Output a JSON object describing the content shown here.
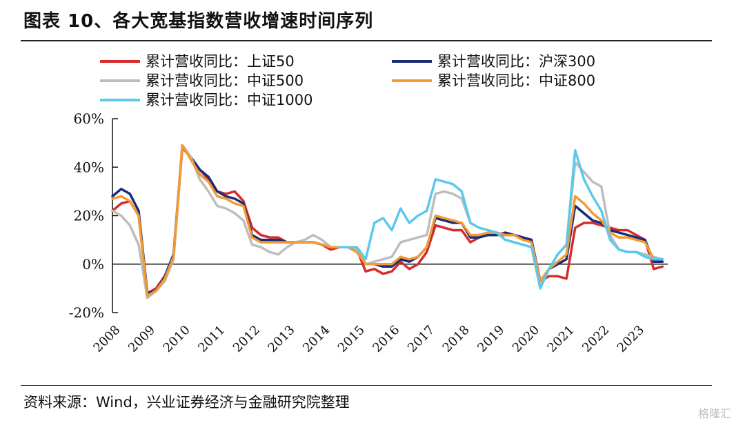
{
  "title": "图表 10、各大宽基指数营收增速时间序列",
  "source": "资料来源：Wind，兴业证券经济与金融研究院整理",
  "watermark": "格隆汇",
  "chart_data": {
    "type": "line",
    "ylim": [
      -20,
      60
    ],
    "yticks": [
      "60%",
      "40%",
      "20%",
      "0%",
      "-20%"
    ],
    "ytick_values": [
      60,
      40,
      20,
      0,
      -20
    ],
    "xlim": [
      2008.0,
      2023.9
    ],
    "xtick_labels": [
      "2008",
      "2009",
      "2010",
      "2011",
      "2012",
      "2013",
      "2014",
      "2015",
      "2016",
      "2017",
      "2018",
      "2019",
      "2020",
      "2021",
      "2022",
      "2023"
    ],
    "xtick_values": [
      2008,
      2009,
      2010,
      2011,
      2012,
      2013,
      2014,
      2015,
      2016,
      2017,
      2018,
      2019,
      2020,
      2021,
      2022,
      2023
    ],
    "legend_position": "top",
    "series": [
      {
        "name": "累计营收同比：上证50",
        "color": "#d62b2b",
        "x": [
          2008.0,
          2008.25,
          2008.5,
          2008.75,
          2009.0,
          2009.25,
          2009.5,
          2009.75,
          2010.0,
          2010.25,
          2010.5,
          2010.75,
          2011.0,
          2011.25,
          2011.5,
          2011.75,
          2012.0,
          2012.25,
          2012.5,
          2012.75,
          2013.0,
          2013.25,
          2013.5,
          2013.75,
          2014.0,
          2014.25,
          2014.5,
          2014.75,
          2015.0,
          2015.25,
          2015.5,
          2015.75,
          2016.0,
          2016.25,
          2016.5,
          2016.75,
          2017.0,
          2017.25,
          2017.5,
          2017.75,
          2018.0,
          2018.25,
          2018.5,
          2018.75,
          2019.0,
          2019.25,
          2019.5,
          2019.75,
          2020.0,
          2020.25,
          2020.5,
          2020.75,
          2021.0,
          2021.25,
          2021.5,
          2021.75,
          2022.0,
          2022.25,
          2022.5,
          2022.75,
          2023.0,
          2023.25,
          2023.5,
          2023.75
        ],
        "values": [
          22,
          25,
          26,
          20,
          -12,
          -10,
          -5,
          3,
          48,
          44,
          39,
          35,
          30,
          29,
          30,
          26,
          15,
          12,
          11,
          11,
          9,
          9,
          9,
          9,
          8,
          6,
          7,
          7,
          6,
          -3,
          -2,
          -4,
          -3,
          1,
          -2,
          0,
          5,
          16,
          15,
          14,
          14,
          9,
          11,
          12,
          12,
          12,
          12,
          11,
          10,
          -7,
          -5,
          -5,
          -6,
          15,
          17,
          17,
          16,
          15,
          14,
          14,
          12,
          10,
          -2,
          -1
        ]
      },
      {
        "name": "累计营收同比：沪深300",
        "color": "#1a2c7a",
        "x": [
          2008.0,
          2008.25,
          2008.5,
          2008.75,
          2009.0,
          2009.25,
          2009.5,
          2009.75,
          2010.0,
          2010.25,
          2010.5,
          2010.75,
          2011.0,
          2011.25,
          2011.5,
          2011.75,
          2012.0,
          2012.25,
          2012.5,
          2012.75,
          2013.0,
          2013.25,
          2013.5,
          2013.75,
          2014.0,
          2014.25,
          2014.5,
          2014.75,
          2015.0,
          2015.25,
          2015.5,
          2015.75,
          2016.0,
          2016.25,
          2016.5,
          2016.75,
          2017.0,
          2017.25,
          2017.5,
          2017.75,
          2018.0,
          2018.25,
          2018.5,
          2018.75,
          2019.0,
          2019.25,
          2019.5,
          2019.75,
          2020.0,
          2020.25,
          2020.5,
          2020.75,
          2021.0,
          2021.25,
          2021.5,
          2021.75,
          2022.0,
          2022.25,
          2022.5,
          2022.75,
          2023.0,
          2023.25,
          2023.5,
          2023.75
        ],
        "values": [
          28,
          31,
          29,
          22,
          -12,
          -11,
          -5,
          4,
          49,
          44,
          39,
          36,
          30,
          28,
          27,
          25,
          12,
          10,
          10,
          10,
          9,
          9,
          9,
          9,
          8,
          7,
          7,
          7,
          5,
          0,
          0,
          -1,
          -1,
          2,
          1,
          3,
          7,
          19,
          18,
          17,
          17,
          11,
          11,
          12,
          12,
          13,
          12,
          11,
          10,
          -7,
          -2,
          0,
          2,
          24,
          21,
          18,
          17,
          14,
          13,
          12,
          11,
          10,
          1,
          1
        ]
      },
      {
        "name": "累计营收同比：中证500",
        "color": "#bdbdbd",
        "x": [
          2008.0,
          2008.25,
          2008.5,
          2008.75,
          2009.0,
          2009.25,
          2009.5,
          2009.75,
          2010.0,
          2010.25,
          2010.5,
          2010.75,
          2011.0,
          2011.25,
          2011.5,
          2011.75,
          2012.0,
          2012.25,
          2012.5,
          2012.75,
          2013.0,
          2013.25,
          2013.5,
          2013.75,
          2014.0,
          2014.25,
          2014.5,
          2014.75,
          2015.0,
          2015.25,
          2015.5,
          2015.75,
          2016.0,
          2016.25,
          2016.5,
          2016.75,
          2017.0,
          2017.25,
          2017.5,
          2017.75,
          2018.0,
          2018.25,
          2018.5,
          2018.75,
          2019.0,
          2019.25,
          2019.5,
          2019.75,
          2020.0,
          2020.25,
          2020.5,
          2020.75,
          2021.0,
          2021.25,
          2021.5,
          2021.75,
          2022.0,
          2022.25,
          2022.5,
          2022.75,
          2023.0,
          2023.25,
          2023.5,
          2023.75
        ],
        "values": [
          22,
          20,
          16,
          8,
          -14,
          -11,
          -7,
          2,
          49,
          44,
          35,
          30,
          24,
          23,
          21,
          18,
          8,
          7,
          5,
          4,
          7,
          9,
          10,
          12,
          10,
          7,
          7,
          7,
          6,
          0,
          1,
          2,
          3,
          9,
          10,
          11,
          12,
          29,
          30,
          29,
          27,
          17,
          15,
          14,
          13,
          10,
          9,
          8,
          7,
          -8,
          -2,
          4,
          8,
          42,
          38,
          34,
          32,
          12,
          6,
          5,
          5,
          4,
          3,
          2
        ]
      },
      {
        "name": "累计营收同比：中证800",
        "color": "#f39a32",
        "x": [
          2008.0,
          2008.25,
          2008.5,
          2008.75,
          2009.0,
          2009.25,
          2009.5,
          2009.75,
          2010.0,
          2010.25,
          2010.5,
          2010.75,
          2011.0,
          2011.25,
          2011.5,
          2011.75,
          2012.0,
          2012.25,
          2012.5,
          2012.75,
          2013.0,
          2013.25,
          2013.5,
          2013.75,
          2014.0,
          2014.25,
          2014.5,
          2014.75,
          2015.0,
          2015.25,
          2015.5,
          2015.75,
          2016.0,
          2016.25,
          2016.5,
          2016.75,
          2017.0,
          2017.25,
          2017.5,
          2017.75,
          2018.0,
          2018.25,
          2018.5,
          2018.75,
          2019.0,
          2019.25,
          2019.5,
          2019.75,
          2020.0,
          2020.25,
          2020.5,
          2020.75,
          2021.0,
          2021.25,
          2021.5,
          2021.75,
          2022.0,
          2022.25,
          2022.5,
          2022.75,
          2023.0,
          2023.25,
          2023.5,
          2023.75
        ],
        "values": [
          27,
          28,
          26,
          20,
          -13,
          -11,
          -6,
          3,
          49,
          43,
          37,
          34,
          28,
          27,
          25,
          24,
          11,
          9,
          9,
          9,
          9,
          9,
          9,
          9,
          8,
          7,
          7,
          7,
          5,
          0,
          0,
          0,
          0,
          3,
          2,
          3,
          7,
          20,
          19,
          18,
          17,
          12,
          12,
          13,
          13,
          12,
          12,
          10,
          9,
          -7,
          -2,
          1,
          4,
          28,
          25,
          21,
          18,
          13,
          11,
          11,
          10,
          9,
          2,
          2
        ]
      },
      {
        "name": "累计营收同比：中证1000",
        "color": "#5bc8ec",
        "x": [
          2014.5,
          2014.75,
          2015.0,
          2015.25,
          2015.5,
          2015.75,
          2016.0,
          2016.25,
          2016.5,
          2016.75,
          2017.0,
          2017.25,
          2017.5,
          2017.75,
          2018.0,
          2018.25,
          2018.5,
          2018.75,
          2019.0,
          2019.25,
          2019.5,
          2019.75,
          2020.0,
          2020.25,
          2020.5,
          2020.75,
          2021.0,
          2021.25,
          2021.5,
          2021.75,
          2022.0,
          2022.25,
          2022.5,
          2022.75,
          2023.0,
          2023.25,
          2023.5,
          2023.75
        ],
        "values": [
          7,
          7,
          7,
          2,
          17,
          19,
          14,
          23,
          17,
          20,
          22,
          35,
          34,
          33,
          30,
          17,
          15,
          14,
          13,
          10,
          9,
          8,
          7,
          -10,
          -2,
          4,
          8,
          47,
          35,
          28,
          22,
          10,
          6,
          5,
          5,
          3,
          2,
          2
        ]
      }
    ]
  }
}
